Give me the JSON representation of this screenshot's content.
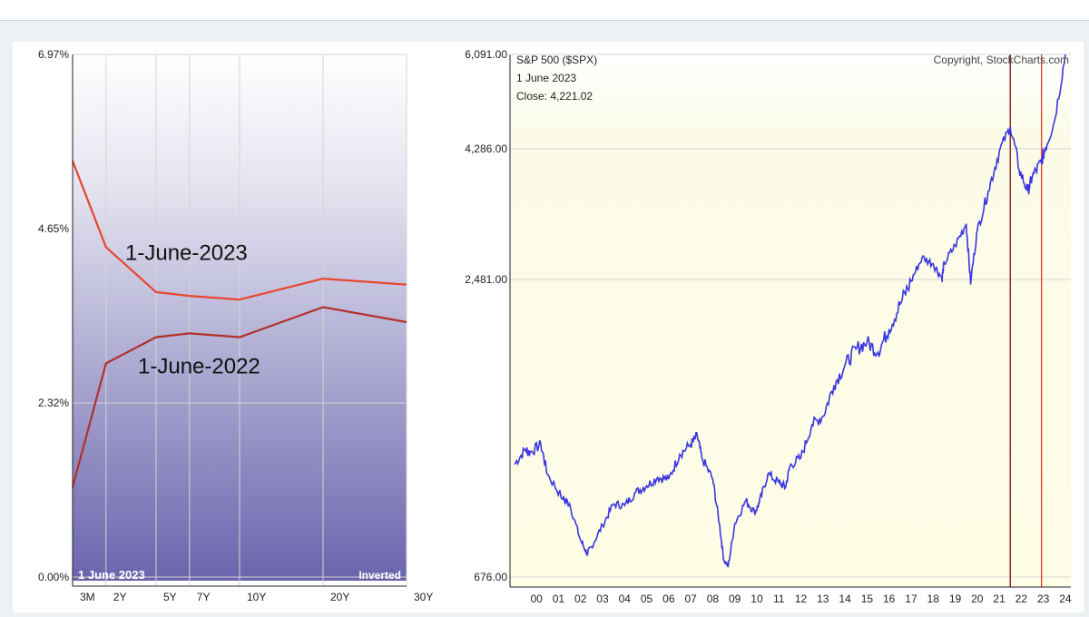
{
  "chart_data": [
    {
      "type": "line",
      "categories": [
        "3M",
        "2Y",
        "5Y",
        "7Y",
        "10Y",
        "20Y",
        "30Y"
      ],
      "series": [
        {
          "name": "1-June-2023",
          "values": [
            5.55,
            4.4,
            3.8,
            3.75,
            3.7,
            3.98,
            3.9
          ],
          "color": "#e8452f"
        },
        {
          "name": "1-June-2022",
          "values": [
            1.2,
            2.85,
            3.2,
            3.25,
            3.2,
            3.6,
            3.4
          ],
          "color": "#b0302a"
        }
      ],
      "yticks": [
        "6.97%",
        "4.65%",
        "2.32%",
        "0.00%"
      ],
      "ylim": [
        0,
        6.97
      ],
      "footer_left": "1  June 2023",
      "footer_right": "Inverted",
      "grid": true
    },
    {
      "type": "line",
      "title": "S&P 500 ($SPX)",
      "copyright": "Copyright, StockCharts.com",
      "info_date": "1  June 2023",
      "info_close": "Close: 4,221.02",
      "yticks": [
        "6,091.00",
        "4,286.00",
        "2,481.00",
        "676.00"
      ],
      "ylim": [
        676,
        6091
      ],
      "xticks": [
        "00",
        "01",
        "02",
        "03",
        "04",
        "05",
        "06",
        "07",
        "08",
        "09",
        "10",
        "11",
        "12",
        "13",
        "14",
        "15",
        "16",
        "17",
        "18",
        "19",
        "20",
        "21",
        "22",
        "23",
        "24"
      ],
      "x": [
        1999.5,
        2000.0,
        2000.2,
        2000.7,
        2001.0,
        2001.7,
        2002.0,
        2002.5,
        2002.8,
        2003.0,
        2003.5,
        2004.0,
        2004.5,
        2005.0,
        2005.5,
        2006.0,
        2006.5,
        2007.0,
        2007.5,
        2007.8,
        2008.0,
        2008.5,
        2008.8,
        2009.0,
        2009.2,
        2009.5,
        2010.0,
        2010.4,
        2010.6,
        2011.0,
        2011.5,
        2011.8,
        2012.0,
        2012.5,
        2013.0,
        2013.5,
        2014.0,
        2014.5,
        2015.0,
        2015.5,
        2016.0,
        2016.5,
        2017.0,
        2017.5,
        2018.0,
        2018.5,
        2018.9,
        2019.0,
        2019.5,
        2020.0,
        2020.2,
        2020.5,
        2021.0,
        2021.5,
        2022.0,
        2022.4,
        2022.8,
        2023.0,
        2023.4,
        2023.6,
        2024.0,
        2024.5
      ],
      "values": [
        1360,
        1450,
        1430,
        1480,
        1300,
        1150,
        1120,
        900,
        820,
        860,
        990,
        1120,
        1110,
        1190,
        1230,
        1280,
        1270,
        1420,
        1480,
        1530,
        1400,
        1270,
        1000,
        780,
        740,
        1000,
        1140,
        1070,
        1120,
        1300,
        1250,
        1220,
        1350,
        1400,
        1600,
        1650,
        1840,
        1960,
        2060,
        2100,
        2040,
        2180,
        2330,
        2470,
        2780,
        2700,
        2500,
        2700,
        2950,
        3250,
        2450,
        3150,
        3700,
        4250,
        4700,
        4000,
        3700,
        3900,
        4100,
        4300,
        4800,
        6091
      ],
      "vlines": [
        2022.0,
        2023.42
      ],
      "grid": true
    }
  ]
}
